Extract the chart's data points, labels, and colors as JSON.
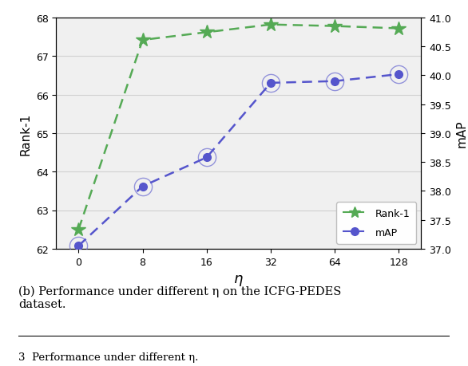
{
  "x_labels": [
    "0",
    "8",
    "16",
    "32",
    "64",
    "128"
  ],
  "x_positions": [
    0,
    1,
    2,
    3,
    4,
    5
  ],
  "rank1_values": [
    62.5,
    67.42,
    67.62,
    67.82,
    67.78,
    67.72
  ],
  "map_values": [
    37.05,
    38.08,
    38.58,
    39.87,
    39.9,
    40.02
  ],
  "rank1_color": "#55aa55",
  "map_color": "#5555cc",
  "rank1_ylim": [
    62,
    68
  ],
  "rank1_yticks": [
    62,
    63,
    64,
    65,
    66,
    67,
    68
  ],
  "map_ylim": [
    37.0,
    41.0
  ],
  "map_yticks": [
    37.0,
    37.5,
    38.0,
    38.5,
    39.0,
    39.5,
    40.0,
    40.5,
    41.0
  ],
  "xlabel": "η",
  "ylabel_left": "Rank-1",
  "ylabel_right": "mAP",
  "legend_rank1": "Rank-1",
  "legend_map": "mAP",
  "bg_color": "#f0f0f0",
  "grid_color": "#d0d0d0",
  "caption": "(b) Performance under different η on the ICFG-PEDES\ndataset.",
  "footnote": "3  Performance under different η.",
  "fig_width": 5.86,
  "fig_height": 4.6
}
